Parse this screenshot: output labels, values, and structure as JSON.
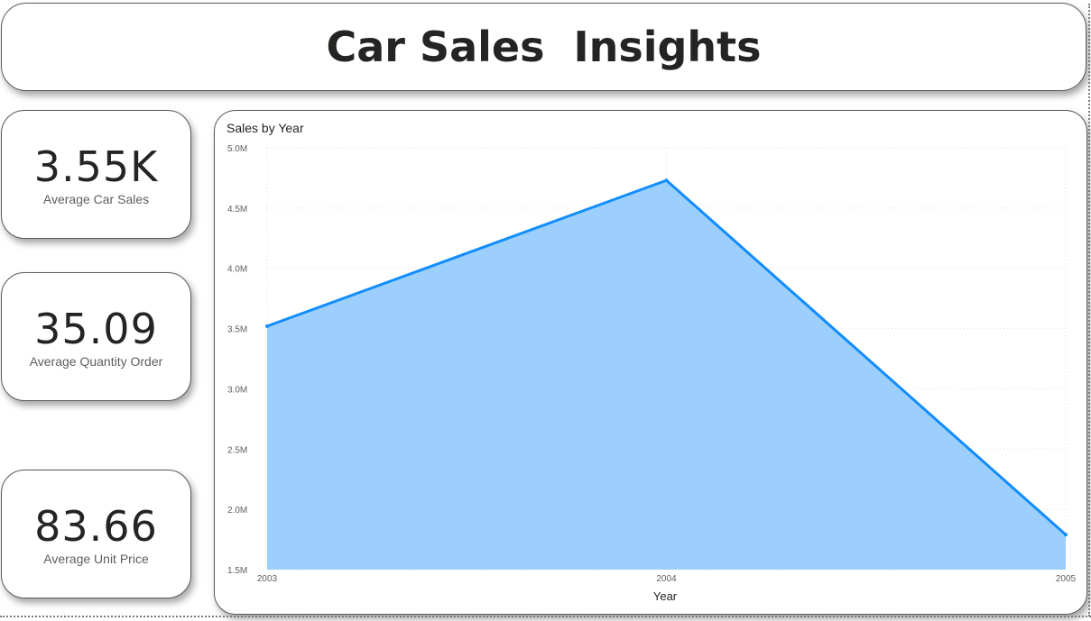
{
  "header": {
    "title": "Car Sales  Insights"
  },
  "kpis": [
    {
      "value": "3.55K",
      "label": "Average Car Sales"
    },
    {
      "value": "35.09",
      "label": "Average Quantity Order"
    },
    {
      "value": "83.66",
      "label": "Average Unit Price"
    }
  ],
  "colors": {
    "line": "#118dff",
    "fill": "#9ccffb",
    "text": "#252423",
    "axis_text": "#605e5c"
  },
  "chart_data": {
    "type": "area",
    "title": "Sales by Year",
    "xlabel": "Year",
    "ylabel": "",
    "x": [
      "2003",
      "2004",
      "2005"
    ],
    "values": [
      3.52,
      4.73,
      1.79
    ],
    "y_ticks": [
      "1.5M",
      "2.0M",
      "2.5M",
      "3.0M",
      "3.5M",
      "4.0M",
      "4.5M",
      "5.0M"
    ],
    "ylim": [
      1.5,
      5.0
    ],
    "y_units": "millions",
    "grid": true,
    "legend": "none"
  }
}
